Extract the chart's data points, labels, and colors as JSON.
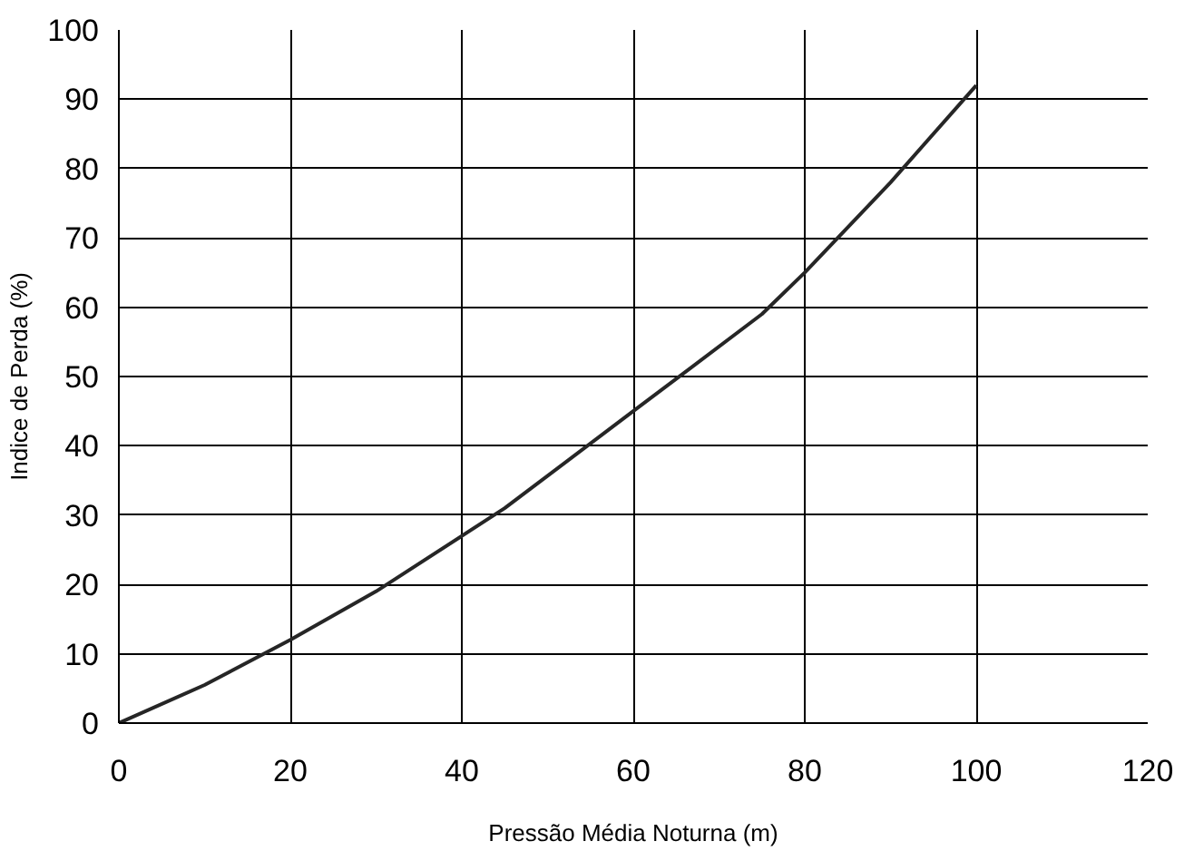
{
  "chart_data": {
    "type": "line",
    "xlabel": "Pressão Média Noturna (m)",
    "ylabel": "Indice de Perda (%)",
    "x": [
      0,
      10,
      20,
      30,
      45,
      60,
      75,
      80,
      90,
      100
    ],
    "series": [
      {
        "color": "#262626",
        "values": [
          0,
          5.5,
          12,
          19,
          31,
          45,
          59,
          65,
          78,
          92
        ]
      }
    ],
    "xlim": [
      0,
      120
    ],
    "ylim": [
      0,
      100
    ],
    "xticks": [
      0,
      20,
      40,
      60,
      80,
      100,
      120
    ],
    "yticks": [
      0,
      10,
      20,
      30,
      40,
      50,
      60,
      70,
      80,
      90,
      100
    ],
    "grid": true,
    "marker": "none",
    "line_style": "solid"
  }
}
